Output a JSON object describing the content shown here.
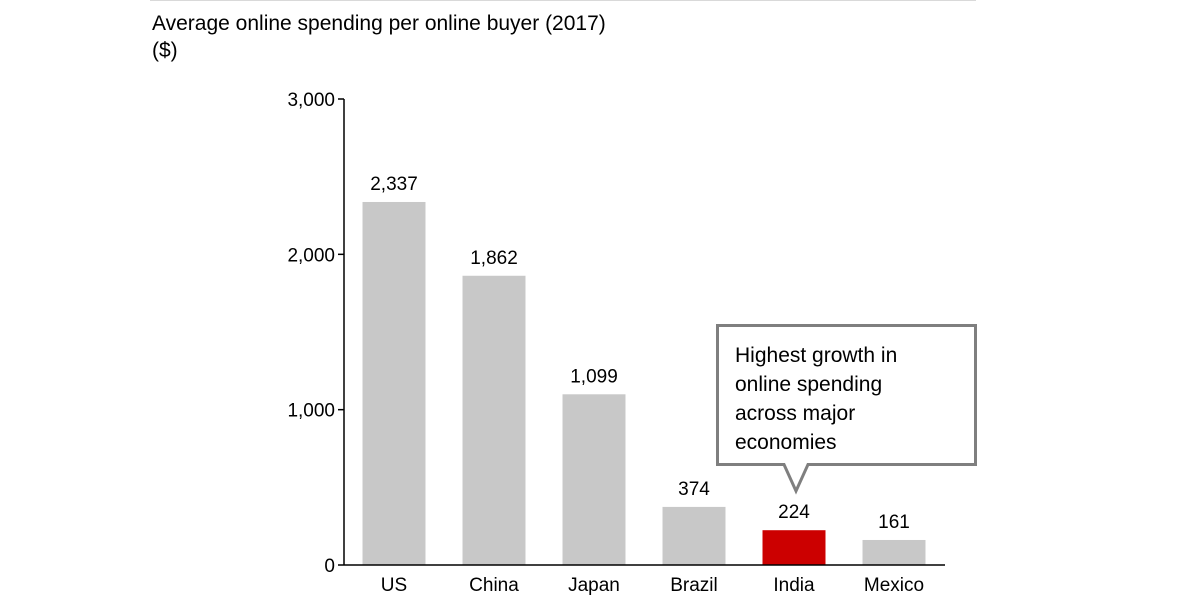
{
  "chart_data": {
    "type": "bar",
    "title": "Average online spending per online buyer (2017)",
    "subtitle": "($)",
    "xlabel": "",
    "ylabel": "",
    "categories": [
      "US",
      "China",
      "Japan",
      "Brazil",
      "India",
      "Mexico"
    ],
    "values": [
      2337,
      1862,
      1099,
      374,
      224,
      161
    ],
    "value_labels": [
      "2,337",
      "1,862",
      "1,099",
      "374",
      "224",
      "161"
    ],
    "highlight_category": "India",
    "ylim": [
      0,
      3000
    ],
    "yticks": [
      0,
      1000,
      2000,
      3000
    ],
    "ytick_labels": [
      "0",
      "1,000",
      "2,000",
      "3,000"
    ],
    "grid": false,
    "annotation": {
      "target": "India",
      "lines": [
        "Highest growth in",
        "online spending",
        "across major",
        "economies"
      ]
    }
  },
  "colors": {
    "bar": "#c8c8c8",
    "highlight": "#cc0000",
    "axis": "#000000",
    "callout_border": "#7f7f7f"
  }
}
